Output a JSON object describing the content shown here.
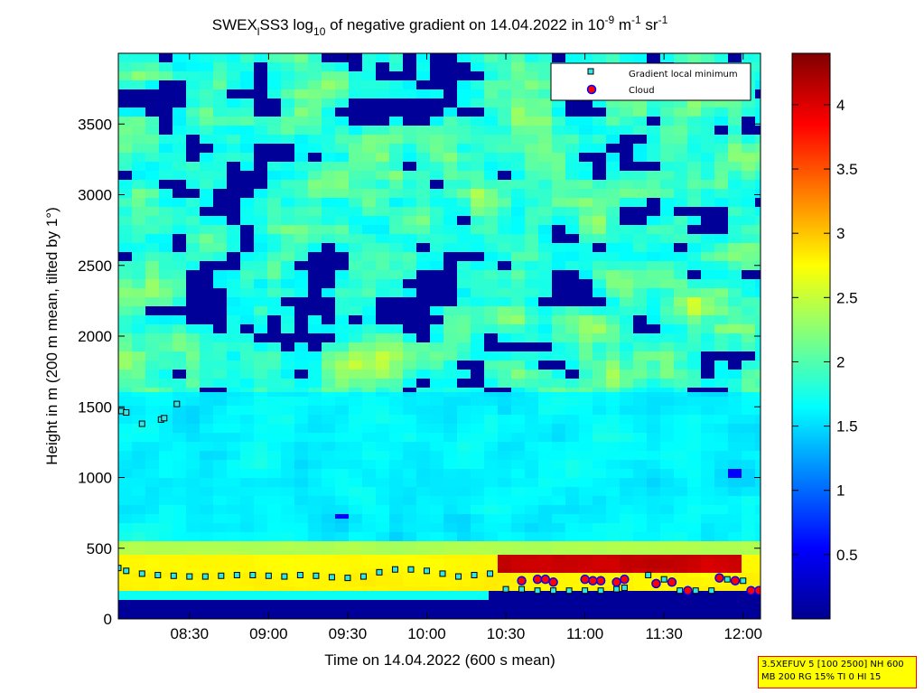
{
  "chart_data": {
    "type": "heatmap",
    "title": {
      "prefix": "SWEX",
      "sub1": "l",
      "mid": "SS3 log",
      "sub2": "10",
      "after": " of negative gradient on 14.04.2022 in 10",
      "sup1": "-9",
      "unit1": " m",
      "sup2": "-1",
      "unit2": " sr",
      "sup3": "-1"
    },
    "xlabel": "Time on 14.04.2022 (600 s mean)",
    "ylabel": "Height in m (200 m mean, tilted by 1°)",
    "x_range_hours": [
      8.05,
      12.11
    ],
    "ylim": [
      0,
      4000
    ],
    "x_ticks": [
      {
        "label": "08:30",
        "value": 8.5
      },
      {
        "label": "09:00",
        "value": 9.0
      },
      {
        "label": "09:30",
        "value": 9.5
      },
      {
        "label": "10:00",
        "value": 10.0
      },
      {
        "label": "10:30",
        "value": 10.5
      },
      {
        "label": "11:00",
        "value": 11.0
      },
      {
        "label": "11:30",
        "value": 11.5
      },
      {
        "label": "12:00",
        "value": 12.0
      }
    ],
    "y_ticks": [
      {
        "label": "0",
        "value": 0
      },
      {
        "label": "500",
        "value": 500
      },
      {
        "label": "1000",
        "value": 1000
      },
      {
        "label": "1500",
        "value": 1500
      },
      {
        "label": "2000",
        "value": 2000
      },
      {
        "label": "2500",
        "value": 2500
      },
      {
        "label": "3000",
        "value": 3000
      },
      {
        "label": "3500",
        "value": 3500
      }
    ],
    "colorbar": {
      "range": [
        0,
        4.4
      ],
      "ticks": [
        {
          "label": "0.5",
          "value": 0.5
        },
        {
          "label": "1",
          "value": 1.0
        },
        {
          "label": "1.5",
          "value": 1.5
        },
        {
          "label": "2",
          "value": 2.0
        },
        {
          "label": "2.5",
          "value": 2.5
        },
        {
          "label": "3",
          "value": 3.0
        },
        {
          "label": "3.5",
          "value": 3.5
        },
        {
          "label": "4",
          "value": 4.0
        }
      ]
    },
    "legend": {
      "position": "top-right",
      "entries": [
        {
          "label": "Gradient local minimum",
          "marker": "cyan-square"
        },
        {
          "label": "Cloud",
          "marker": "red-circle"
        }
      ]
    },
    "series": [
      {
        "name": "Gradient local minimum",
        "points": [
          [
            8.07,
            1470
          ],
          [
            8.1,
            1460
          ],
          [
            8.2,
            1380
          ],
          [
            8.32,
            1410
          ],
          [
            8.34,
            1420
          ],
          [
            8.42,
            1520
          ],
          [
            8.05,
            360
          ],
          [
            8.1,
            340
          ],
          [
            8.2,
            320
          ],
          [
            8.3,
            310
          ],
          [
            8.4,
            305
          ],
          [
            8.5,
            300
          ],
          [
            8.6,
            300
          ],
          [
            8.7,
            305
          ],
          [
            8.8,
            310
          ],
          [
            8.9,
            310
          ],
          [
            9.0,
            305
          ],
          [
            9.1,
            300
          ],
          [
            9.2,
            310
          ],
          [
            9.3,
            305
          ],
          [
            9.4,
            295
          ],
          [
            9.5,
            290
          ],
          [
            9.6,
            300
          ],
          [
            9.7,
            330
          ],
          [
            9.8,
            350
          ],
          [
            9.9,
            350
          ],
          [
            10.0,
            340
          ],
          [
            10.1,
            320
          ],
          [
            10.2,
            300
          ],
          [
            10.3,
            310
          ],
          [
            10.4,
            320
          ],
          [
            10.5,
            210
          ],
          [
            10.6,
            210
          ],
          [
            10.7,
            200
          ],
          [
            10.8,
            200
          ],
          [
            10.9,
            200
          ],
          [
            11.0,
            200
          ],
          [
            11.1,
            200
          ],
          [
            11.2,
            210
          ],
          [
            11.25,
            220
          ],
          [
            11.4,
            310
          ],
          [
            11.5,
            280
          ],
          [
            11.6,
            200
          ],
          [
            11.7,
            200
          ],
          [
            11.8,
            200
          ],
          [
            11.9,
            280
          ],
          [
            12.0,
            270
          ],
          [
            12.1,
            200
          ]
        ]
      },
      {
        "name": "Cloud",
        "points": [
          [
            10.6,
            270
          ],
          [
            10.7,
            280
          ],
          [
            10.75,
            280
          ],
          [
            10.8,
            260
          ],
          [
            11.0,
            280
          ],
          [
            11.05,
            270
          ],
          [
            11.1,
            270
          ],
          [
            11.2,
            260
          ],
          [
            11.25,
            280
          ],
          [
            11.45,
            250
          ],
          [
            11.55,
            260
          ],
          [
            11.65,
            200
          ],
          [
            11.85,
            290
          ],
          [
            11.95,
            270
          ],
          [
            12.05,
            200
          ],
          [
            12.1,
            200
          ]
        ]
      }
    ]
  },
  "info_box": {
    "line1": "3.5XEFUV 5 [100 2500] NH 600",
    "line2": "MB 200 RG 15% TI 0 HI 15"
  },
  "colors": {
    "low": "#00008f",
    "high": "#800000",
    "marker_fill": "#33e6e6",
    "cloud_fill": "#ff0000",
    "cloud_edge": "#0000ff"
  }
}
